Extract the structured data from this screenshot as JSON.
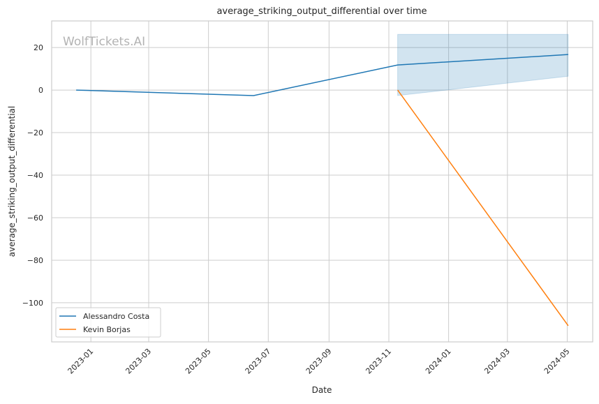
{
  "chart_data": {
    "type": "line",
    "title": "average_striking_output_differential over time",
    "xlabel": "Date",
    "ylabel": "average_striking_output_differential",
    "watermark": "WolfTickets.AI",
    "xlim": [
      "2022-11-22",
      "2024-05-27"
    ],
    "ylim": [
      -118.4,
      32.5
    ],
    "grid": true,
    "legend_position": "lower-left",
    "x_ticks": [
      "2023-01-01",
      "2023-03-01",
      "2023-05-01",
      "2023-07-01",
      "2023-09-01",
      "2023-11-01",
      "2024-01-01",
      "2024-03-01",
      "2024-05-01"
    ],
    "x_tick_labels": [
      "2023-01",
      "2023-03",
      "2023-05",
      "2023-07",
      "2023-09",
      "2023-11",
      "2024-01",
      "2024-03",
      "2024-05"
    ],
    "y_ticks": [
      20,
      0,
      -20,
      -40,
      -60,
      -80,
      -100
    ],
    "y_tick_labels": [
      "20",
      "0",
      "−20",
      "−40",
      "−60",
      "−80",
      "−100"
    ],
    "series": [
      {
        "name": "Alessandro Costa",
        "color": "#1f77b4",
        "x": [
          "2022-12-17",
          "2023-06-16",
          "2023-11-10",
          "2024-05-02"
        ],
        "y": [
          0,
          -2.6,
          11.8,
          16.7
        ],
        "band": {
          "x": [
            "2023-11-10",
            "2024-05-02"
          ],
          "upper": [
            26.2,
            26.2
          ],
          "lower": [
            -2.6,
            6.5
          ]
        }
      },
      {
        "name": "Kevin Borjas",
        "color": "#ff7f0e",
        "x": [
          "2023-11-10",
          "2024-05-02"
        ],
        "y": [
          0,
          -110.8
        ]
      }
    ]
  }
}
